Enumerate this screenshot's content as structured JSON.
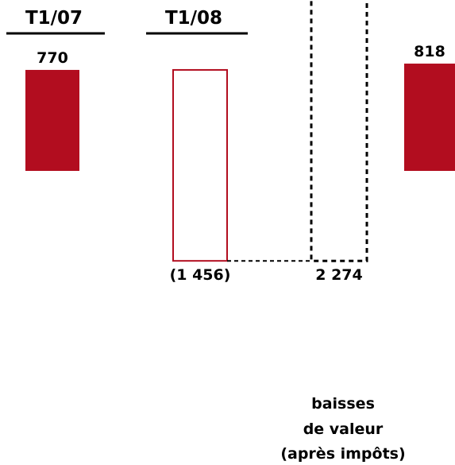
{
  "chart_data": {
    "type": "bar",
    "subtype": "waterfall",
    "headers": [
      "T1/07",
      "T1/08"
    ],
    "bars": [
      {
        "label": "770",
        "value": 770,
        "style": "solid"
      },
      {
        "label": "(1 456)",
        "value": -1456,
        "style": "outline"
      },
      {
        "label": "2 274",
        "value": 2274,
        "style": "dashed"
      },
      {
        "label": "818",
        "value": 818,
        "style": "solid"
      }
    ],
    "annotation": [
      "baisses",
      "de valeur",
      "(après impôts)"
    ]
  },
  "colors": {
    "bar_fill": "#b20d1f",
    "bar_outline": "#b20d1f",
    "dashed": "#000000",
    "text": "#000000"
  }
}
